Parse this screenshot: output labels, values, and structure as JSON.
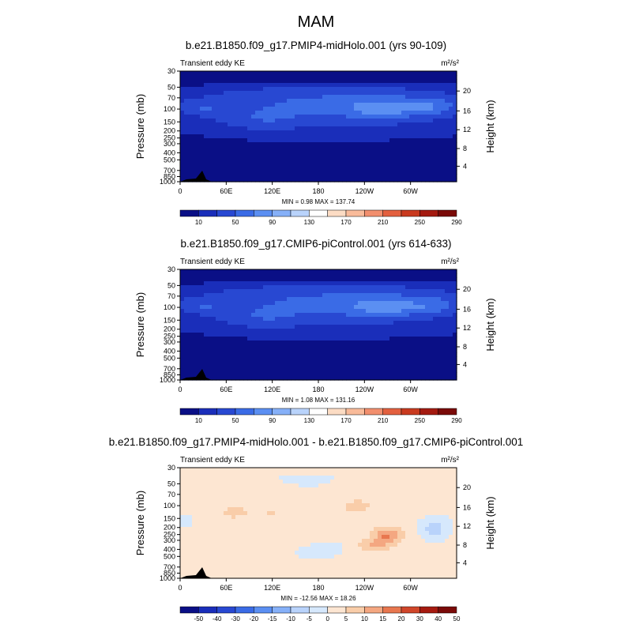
{
  "figure": {
    "title": "MAM"
  },
  "palette": {
    "ke": [
      "#0a0f86",
      "#1a2eba",
      "#2848d2",
      "#3a6be6",
      "#5b8ff2",
      "#86b0f8",
      "#b9d3fb",
      "#ffffff",
      "#fcdcc4",
      "#f9bb9a",
      "#f28f6e",
      "#e3603f",
      "#c93a1f",
      "#a41a10",
      "#7a0a08"
    ],
    "diff": [
      "#0a0f86",
      "#1a2eba",
      "#2848d2",
      "#3a6be6",
      "#5b8ff2",
      "#86b0f8",
      "#b9d3fb",
      "#d6e8fc",
      "#fde6d2",
      "#f9cda9",
      "#f4a781",
      "#e8774f",
      "#d0462a",
      "#a61a10",
      "#7a0a08"
    ],
    "land": "#000000"
  },
  "chart_data": [
    {
      "type": "heatmap",
      "title": "b.e21.B1850.f09_g17.PMIP4-midHolo.001 (yrs 90-109)",
      "left_string": "Transient eddy KE",
      "right_string": "m²/s²",
      "xlabel": "",
      "ylabel": "Pressure (mb)",
      "ylabel_right": "Height (km)",
      "x_ticks": [
        "0",
        "60E",
        "120E",
        "180",
        "120W",
        "60W"
      ],
      "x_range": [
        0,
        360
      ],
      "y_ticks_left": [
        "30",
        "50",
        "70",
        "100",
        "150",
        "200",
        "250",
        "300",
        "400",
        "500",
        "700",
        "850",
        "1000"
      ],
      "y_ticks_right": [
        "20",
        "16",
        "12",
        "8",
        "4"
      ],
      "y_range_mb": [
        1000,
        30
      ],
      "stats": "MIN =    0.98   MAX = 137.74",
      "min": 0.98,
      "max": 137.74,
      "colorbar_labels": [
        "10",
        "50",
        "90",
        "130",
        "170",
        "210",
        "250",
        "290"
      ],
      "contour_levels": [
        10,
        30,
        50,
        70,
        90,
        110,
        130,
        150,
        170,
        190,
        210,
        230,
        250,
        270,
        290
      ]
    },
    {
      "type": "heatmap",
      "title": "b.e21.B1850.f09_g17.CMIP6-piControl.001 (yrs 614-633)",
      "left_string": "Transient eddy KE",
      "right_string": "m²/s²",
      "xlabel": "",
      "ylabel": "Pressure (mb)",
      "ylabel_right": "Height (km)",
      "x_ticks": [
        "0",
        "60E",
        "120E",
        "180",
        "120W",
        "60W"
      ],
      "x_range": [
        0,
        360
      ],
      "y_ticks_left": [
        "30",
        "50",
        "70",
        "100",
        "150",
        "200",
        "250",
        "300",
        "400",
        "500",
        "700",
        "850",
        "1000"
      ],
      "y_ticks_right": [
        "20",
        "16",
        "12",
        "8",
        "4"
      ],
      "y_range_mb": [
        1000,
        30
      ],
      "stats": "MIN =    1.08   MAX = 131.16",
      "min": 1.08,
      "max": 131.16,
      "colorbar_labels": [
        "10",
        "50",
        "90",
        "130",
        "170",
        "210",
        "250",
        "290"
      ],
      "contour_levels": [
        10,
        30,
        50,
        70,
        90,
        110,
        130,
        150,
        170,
        190,
        210,
        230,
        250,
        270,
        290
      ]
    },
    {
      "type": "heatmap",
      "title": "b.e21.B1850.f09_g17.PMIP4-midHolo.001 - b.e21.B1850.f09_g17.CMIP6-piControl.001",
      "left_string": "Transient eddy KE",
      "right_string": "m²/s²",
      "xlabel": "",
      "ylabel": "Pressure (mb)",
      "ylabel_right": "Height (km)",
      "x_ticks": [
        "0",
        "60E",
        "120E",
        "180",
        "120W",
        "60W"
      ],
      "x_range": [
        0,
        360
      ],
      "y_ticks_left": [
        "30",
        "50",
        "70",
        "100",
        "150",
        "200",
        "250",
        "300",
        "400",
        "500",
        "700",
        "850",
        "1000"
      ],
      "y_ticks_right": [
        "20",
        "16",
        "12",
        "8",
        "4"
      ],
      "y_range_mb": [
        1000,
        30
      ],
      "stats": "MIN = -12.56   MAX =  18.26",
      "min": -12.56,
      "max": 18.26,
      "colorbar_labels": [
        "-50",
        "-40",
        "-30",
        "-20",
        "-15",
        "-10",
        "-5",
        "0",
        "5",
        "10",
        "15",
        "20",
        "30",
        "40",
        "50"
      ],
      "contour_levels": [
        -50,
        -40,
        -30,
        -20,
        -15,
        -10,
        -5,
        0,
        5,
        10,
        15,
        20,
        30,
        40,
        50
      ]
    }
  ]
}
